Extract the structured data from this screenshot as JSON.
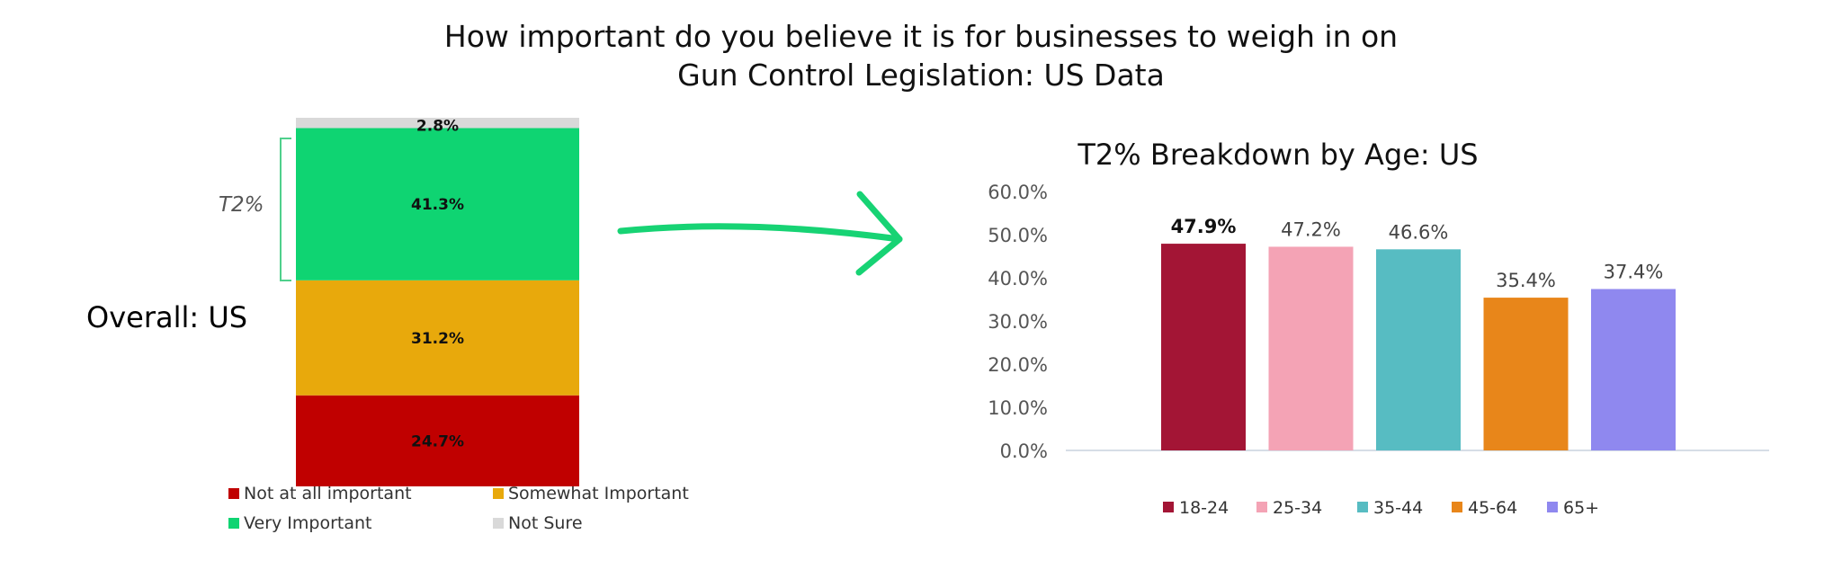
{
  "title_line1": "How important do you believe it is for businesses to weigh in on",
  "title_line2": "Gun Control Legislation: US Data",
  "overall_label": "Overall: US",
  "bracket_label": "T2%",
  "colors": {
    "not_at_all": "#c00000",
    "somewhat": "#e8a90c",
    "very": "#0fd472",
    "not_sure": "#d9d9d9",
    "arrow": "#17d374",
    "axis": "#d6dde6"
  },
  "chart_data": [
    {
      "type": "bar",
      "stacked": true,
      "title": "",
      "categories": [
        "Overall: US"
      ],
      "ylim": [
        0,
        100
      ],
      "series": [
        {
          "name": "Not at all important",
          "key": "not_at_all",
          "values": [
            24.7
          ],
          "label": "24.7%"
        },
        {
          "name": "Somewhat Important",
          "key": "somewhat",
          "values": [
            31.2
          ],
          "label": "31.2%"
        },
        {
          "name": "Very Important",
          "key": "very",
          "values": [
            41.3
          ],
          "label": "41.3%"
        },
        {
          "name": "Not Sure",
          "key": "not_sure",
          "values": [
            2.8
          ],
          "label": "2.8%"
        }
      ],
      "legend": {
        "position": "bottom",
        "items": [
          {
            "name": "Not at all important",
            "key": "not_at_all"
          },
          {
            "name": "Somewhat Important",
            "key": "somewhat"
          },
          {
            "name": "Very Important",
            "key": "very"
          },
          {
            "name": "Not Sure",
            "key": "not_sure"
          }
        ]
      }
    },
    {
      "type": "bar",
      "title": "T2% Breakdown by Age: US",
      "categories": [
        "18-24",
        "25-34",
        "35-44",
        "45-64",
        "65+"
      ],
      "values": [
        47.9,
        47.2,
        46.6,
        35.4,
        37.4
      ],
      "value_labels": [
        "47.9%",
        "47.2%",
        "46.6%",
        "35.4%",
        "37.4%"
      ],
      "colors": [
        "#a31535",
        "#f4a3b5",
        "#57bcc2",
        "#e8861a",
        "#8f88ef"
      ],
      "ylim": [
        0,
        60
      ],
      "yticks": [
        "0.0%",
        "10.0%",
        "20.0%",
        "30.0%",
        "40.0%",
        "50.0%",
        "60.0%"
      ],
      "xlabel": "",
      "ylabel": "",
      "grid": false,
      "legend": {
        "position": "bottom"
      }
    }
  ]
}
